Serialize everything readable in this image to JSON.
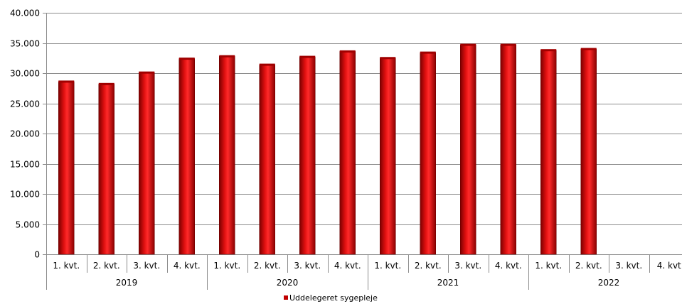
{
  "chart_data": {
    "type": "bar",
    "categories": [
      "1. kvt.",
      "2. kvt.",
      "3. kvt.",
      "4. kvt.",
      "1. kvt.",
      "2. kvt.",
      "3. kvt.",
      "4. kvt.",
      "1. kvt.",
      "2. kvt.",
      "3. kvt.",
      "4. kvt.",
      "1. kvt.",
      "2. kvt.",
      "3. kvt.",
      "4. kvt"
    ],
    "groups": [
      {
        "label": "2019",
        "span": 4
      },
      {
        "label": "2020",
        "span": 4
      },
      {
        "label": "2021",
        "span": 4
      },
      {
        "label": "2022",
        "span": 4
      }
    ],
    "series": [
      {
        "name": "Uddelegeret sygepleje",
        "color": "#c00000",
        "values": [
          28600,
          28200,
          30100,
          32400,
          32800,
          31400,
          32700,
          33600,
          32500,
          33400,
          34700,
          34700,
          33800,
          34000,
          null,
          null
        ]
      }
    ],
    "ylim": [
      0,
      40000
    ],
    "yticks": [
      0,
      5000,
      10000,
      15000,
      20000,
      25000,
      30000,
      35000,
      40000
    ],
    "ytick_labels": [
      "0",
      "5.000",
      "10.000",
      "15.000",
      "20.000",
      "25.000",
      "30.000",
      "35.000",
      "40.000"
    ],
    "grid": true,
    "legend_position": "bottom"
  }
}
